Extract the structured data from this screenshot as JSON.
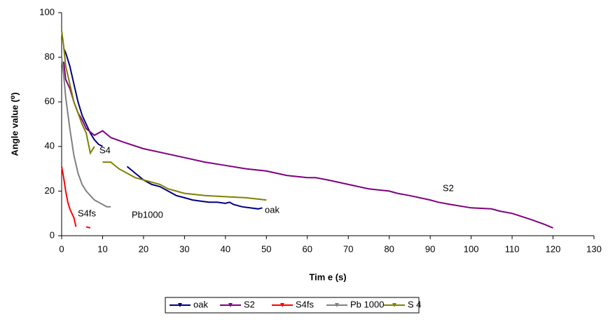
{
  "chart_data": {
    "type": "line",
    "xlabel": "Tim e (s)",
    "ylabel": "Angle value (⁰)",
    "xlim": [
      0,
      130
    ],
    "xticks": [
      0,
      10,
      20,
      30,
      40,
      50,
      60,
      70,
      80,
      90,
      100,
      110,
      120,
      130
    ],
    "ylim": [
      0,
      100
    ],
    "yticks": [
      0,
      20,
      40,
      60,
      80,
      100
    ],
    "grid": false,
    "legend": "bottom",
    "annotations": [
      "S4",
      "S4fs",
      "Pb1000",
      "oak",
      "S2"
    ],
    "series": [
      {
        "name": "oak",
        "color": "#000080",
        "x": [
          0.5,
          1,
          2,
          3,
          4,
          5,
          6,
          7,
          8,
          9,
          10,
          14,
          16,
          18,
          20,
          22,
          24,
          26,
          28,
          30,
          32,
          34,
          36,
          38,
          40,
          41,
          42,
          44,
          46,
          48,
          49
        ],
        "values": [
          84,
          82,
          76,
          68,
          60,
          54,
          50,
          46,
          43,
          41,
          40,
          null,
          31,
          28,
          25,
          23,
          22,
          20,
          18,
          17,
          16,
          15.5,
          15,
          15,
          14.5,
          15,
          14,
          13,
          12.5,
          12,
          12.5
        ]
      },
      {
        "name": "S2",
        "color": "#800080",
        "x": [
          0.5,
          1,
          2,
          3,
          4,
          5,
          6,
          8,
          10,
          12,
          15,
          20,
          25,
          30,
          35,
          40,
          45,
          50,
          55,
          60,
          62,
          65,
          70,
          75,
          80,
          82,
          85,
          90,
          92,
          95,
          100,
          105,
          107,
          110,
          115,
          118,
          120
        ],
        "values": [
          78,
          70,
          66,
          60,
          55,
          52,
          48,
          45,
          47,
          44,
          42,
          39,
          37,
          35,
          33,
          31.5,
          30,
          29,
          27,
          26,
          26,
          25,
          23,
          21,
          20,
          19,
          18,
          16,
          15,
          14,
          12.5,
          12,
          11,
          10,
          7,
          5,
          3.5
        ]
      },
      {
        "name": "S4fs",
        "color": "#ff0000",
        "x": [
          0,
          0.5,
          1,
          1.5,
          2,
          3,
          3.5,
          5,
          6,
          7
        ],
        "values": [
          31,
          26,
          20,
          15,
          12,
          8,
          4,
          null,
          4,
          3.5
        ]
      },
      {
        "name": "Pb 1000",
        "color": "#808080",
        "x": [
          0,
          0.5,
          1,
          2,
          3,
          4,
          5,
          6,
          7,
          8,
          9,
          10,
          11,
          12
        ],
        "values": [
          80,
          72,
          62,
          48,
          36,
          28,
          23,
          20,
          18,
          16,
          15,
          14,
          13,
          13
        ]
      },
      {
        "name": "S 4",
        "color": "#808000",
        "x": [
          0,
          0.5,
          1,
          2,
          3,
          4,
          5,
          6,
          7,
          8,
          9,
          10,
          12,
          14,
          16,
          18,
          20,
          22,
          24,
          26,
          28,
          30,
          35,
          40,
          45,
          50
        ],
        "values": [
          92,
          85,
          76,
          68,
          60,
          55,
          50,
          46,
          37,
          40,
          null,
          33,
          33,
          30,
          28,
          26,
          25,
          24,
          23,
          21,
          20,
          19,
          18,
          17.5,
          17,
          16
        ]
      }
    ]
  }
}
